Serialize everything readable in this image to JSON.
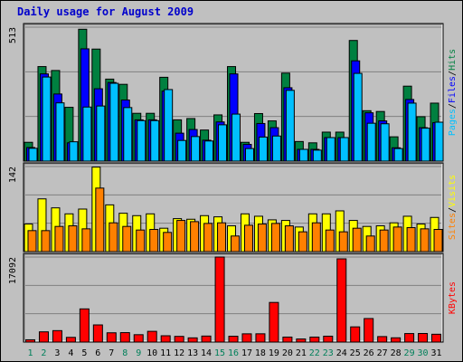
{
  "title": "Daily usage for August 2009",
  "colors": {
    "hits": "#008040",
    "files": "#0000ff",
    "pages": "#00c0ff",
    "visits": "#ffff00",
    "sites": "#ff8000",
    "kbytes": "#ff0000",
    "weekend": "#00805a",
    "weekday": "#000000",
    "slash": "#000000"
  },
  "weekend_days": [
    1,
    2,
    8,
    9,
    15,
    16,
    22,
    23,
    29,
    30
  ],
  "chart_data": [
    {
      "type": "bar",
      "name": "hits-files-pages",
      "ymax_label": "513",
      "ylim": [
        0,
        513
      ],
      "legend": [
        "Pages",
        "Files",
        "Hits"
      ],
      "x": [
        1,
        2,
        3,
        4,
        5,
        6,
        7,
        8,
        9,
        10,
        11,
        12,
        13,
        14,
        15,
        16,
        17,
        18,
        19,
        20,
        21,
        22,
        23,
        24,
        25,
        26,
        27,
        28,
        29,
        30,
        31
      ],
      "series": [
        {
          "name": "Hits",
          "values": [
            72,
            362,
            347,
            206,
            505,
            429,
            314,
            294,
            183,
            183,
            321,
            158,
            163,
            119,
            177,
            362,
            72,
            182,
            154,
            337,
            75,
            70,
            111,
            111,
            462,
            193,
            190,
            93,
            287,
            170,
            222
          ]
        },
        {
          "name": "Files",
          "values": [
            52,
            334,
            257,
            70,
            430,
            277,
            301,
            234,
            158,
            158,
            268,
            107,
            121,
            80,
            150,
            334,
            64,
            144,
            128,
            281,
            45,
            45,
            90,
            90,
            384,
            185,
            154,
            51,
            236,
            128,
            147
          ]
        },
        {
          "name": "Pages",
          "values": [
            49,
            322,
            223,
            74,
            207,
            211,
            298,
            205,
            155,
            155,
            274,
            79,
            94,
            77,
            139,
            180,
            48,
            92,
            96,
            271,
            45,
            42,
            90,
            90,
            336,
            145,
            143,
            48,
            222,
            126,
            149
          ]
        }
      ]
    },
    {
      "type": "bar",
      "name": "visits-sites",
      "ymax_label": "142",
      "ylim": [
        0,
        142
      ],
      "legend": [
        "Sites",
        "Visits"
      ],
      "x": [
        1,
        2,
        3,
        4,
        5,
        6,
        7,
        8,
        9,
        10,
        11,
        12,
        13,
        14,
        15,
        16,
        17,
        18,
        19,
        20,
        21,
        22,
        23,
        24,
        25,
        26,
        27,
        28,
        29,
        30,
        31
      ],
      "series": [
        {
          "name": "Visits",
          "values": [
            46,
            88,
            73,
            63,
            71,
            141,
            78,
            64,
            60,
            63,
            39,
            55,
            54,
            60,
            58,
            43,
            63,
            59,
            53,
            52,
            41,
            63,
            63,
            68,
            52,
            42,
            43,
            48,
            59,
            46,
            57
          ]
        },
        {
          "name": "Sites",
          "values": [
            35,
            35,
            42,
            43,
            38,
            106,
            48,
            42,
            36,
            37,
            32,
            52,
            50,
            47,
            48,
            26,
            44,
            46,
            47,
            43,
            33,
            48,
            36,
            33,
            39,
            26,
            36,
            41,
            40,
            38,
            37
          ]
        }
      ]
    },
    {
      "type": "bar",
      "name": "kbytes",
      "ymax_label": "17092",
      "ylim": [
        0,
        17092
      ],
      "legend": [
        "KBytes"
      ],
      "x": [
        1,
        2,
        3,
        4,
        5,
        6,
        7,
        8,
        9,
        10,
        11,
        12,
        13,
        14,
        15,
        16,
        17,
        18,
        19,
        20,
        21,
        22,
        23,
        24,
        25,
        26,
        27,
        28,
        29,
        30,
        31
      ],
      "series": [
        {
          "name": "KBytes",
          "values": [
            461,
            2059,
            2302,
            948,
            6671,
            3452,
            1867,
            1902,
            1486,
            2161,
            1273,
            1147,
            849,
            1212,
            17092,
            1176,
            1661,
            1667,
            7966,
            1006,
            625,
            1005,
            1186,
            16727,
            3058,
            4733,
            1107,
            862,
            1715,
            1728,
            1575
          ]
        }
      ]
    }
  ]
}
